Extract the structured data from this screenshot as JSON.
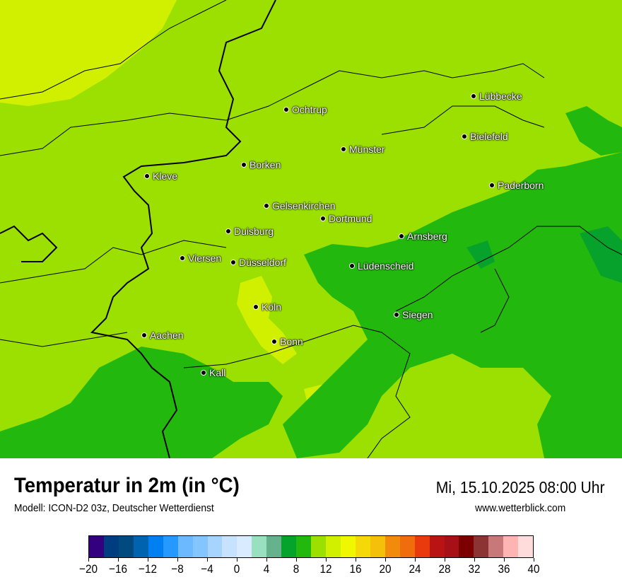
{
  "header": {
    "title": "Temperatur in 2m (in °C)",
    "subtitle": "Modell: ICON-D2 03z, Deutscher Wetterdienst",
    "datetime": "Mi, 15.10.2025 08:00 Uhr",
    "website": "www.wetterblick.com"
  },
  "map": {
    "colors": {
      "t10_12": "#9be000",
      "t12_14": "#d0f000",
      "t8_10": "#22b80e",
      "t6_8": "#07a22c"
    },
    "cities": [
      {
        "name": "Lübbecke"
      },
      {
        "name": "Ochtrup"
      },
      {
        "name": "Bielefeld"
      },
      {
        "name": "Münster"
      },
      {
        "name": "Borken"
      },
      {
        "name": "Kleve"
      },
      {
        "name": "Paderborn"
      },
      {
        "name": "Gelsenkirchen"
      },
      {
        "name": "Dortmund"
      },
      {
        "name": "Duisburg"
      },
      {
        "name": "Arnsberg"
      },
      {
        "name": "Viersen"
      },
      {
        "name": "Düsseldorf"
      },
      {
        "name": "Lüdenscheid"
      },
      {
        "name": "Köln"
      },
      {
        "name": "Siegen"
      },
      {
        "name": "Aachen"
      },
      {
        "name": "Bonn"
      },
      {
        "name": "Kall"
      }
    ]
  },
  "colorbar": {
    "colors": [
      "#33007f",
      "#003c80",
      "#004a80",
      "#0063b0",
      "#0080f0",
      "#2599ff",
      "#6cb9ff",
      "#84c4ff",
      "#a6d4ff",
      "#c6e2ff",
      "#d8ebff",
      "#98e0c0",
      "#66b28c",
      "#05a22c",
      "#22b80e",
      "#9be000",
      "#d0f000",
      "#f0f800",
      "#f4d808",
      "#f5c00a",
      "#f28a0c",
      "#f06c0c",
      "#e83a0c",
      "#b81414",
      "#a81018",
      "#7c0000",
      "#8c3434",
      "#c87878",
      "#ffb4b4",
      "#ffdcdc"
    ],
    "ticks": [
      "−20",
      "−16",
      "−12",
      "−8",
      "−4",
      "0",
      "4",
      "8",
      "12",
      "16",
      "20",
      "24",
      "28",
      "32",
      "36",
      "40"
    ]
  }
}
